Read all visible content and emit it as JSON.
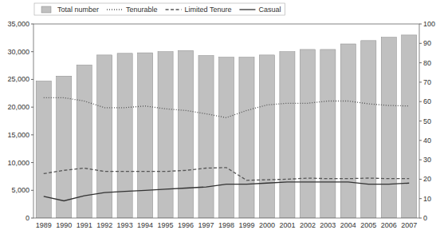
{
  "chart_data": {
    "type": "bar",
    "categories": [
      "1989",
      "1990",
      "1991",
      "1992",
      "1993",
      "1994",
      "1995",
      "1996",
      "1997",
      "1998",
      "1999",
      "2000",
      "2001",
      "2002",
      "2003",
      "2004",
      "2005",
      "2006",
      "2007"
    ],
    "series": [
      {
        "name": "Total number",
        "type": "bar",
        "color": "#c0c0c0",
        "values": [
          24700,
          25600,
          27600,
          29400,
          29700,
          29800,
          30000,
          30200,
          29300,
          29000,
          29000,
          29400,
          30000,
          30400,
          30400,
          31400,
          32000,
          32600,
          33000
        ]
      },
      {
        "name": "Tenurable",
        "type": "line",
        "color": "#555555",
        "line_style": "dotted",
        "values": [
          21700,
          21700,
          21100,
          19900,
          19900,
          20200,
          19700,
          19400,
          18800,
          18100,
          19400,
          20400,
          20700,
          20700,
          21100,
          21100,
          20600,
          20300,
          20200
        ]
      },
      {
        "name": "Limited Tenure",
        "type": "line",
        "color": "#555555",
        "line_style": "dashed",
        "values": [
          8000,
          8600,
          9000,
          8400,
          8400,
          8400,
          8400,
          8600,
          9000,
          9100,
          6800,
          6900,
          7000,
          7200,
          7100,
          7100,
          7200,
          7100,
          7100
        ]
      },
      {
        "name": "Casual",
        "type": "line",
        "color": "#333333",
        "line_style": "solid",
        "values": [
          3900,
          3100,
          4000,
          4600,
          4800,
          5000,
          5200,
          5400,
          5600,
          6100,
          6100,
          6300,
          6500,
          6500,
          6500,
          6500,
          6100,
          6100,
          6300
        ]
      }
    ],
    "ylim": [
      0,
      35000
    ],
    "yticks": [
      0,
      {
        "value": 5000,
        "label": "5,000"
      },
      {
        "value": 10000,
        "label": "10,000"
      },
      {
        "value": 15000,
        "label": "15,000"
      },
      {
        "value": 20000,
        "label": "20,000"
      },
      {
        "value": 25000,
        "label": "25,000"
      },
      {
        "value": 30000,
        "label": "30,000"
      },
      {
        "value": 35000,
        "label": "35,000"
      }
    ],
    "y2lim": [
      0,
      100
    ],
    "y2ticks": [
      0,
      10,
      20,
      30,
      40,
      50,
      60,
      70,
      80,
      90,
      100
    ],
    "grid": false,
    "legend": "top-left"
  }
}
